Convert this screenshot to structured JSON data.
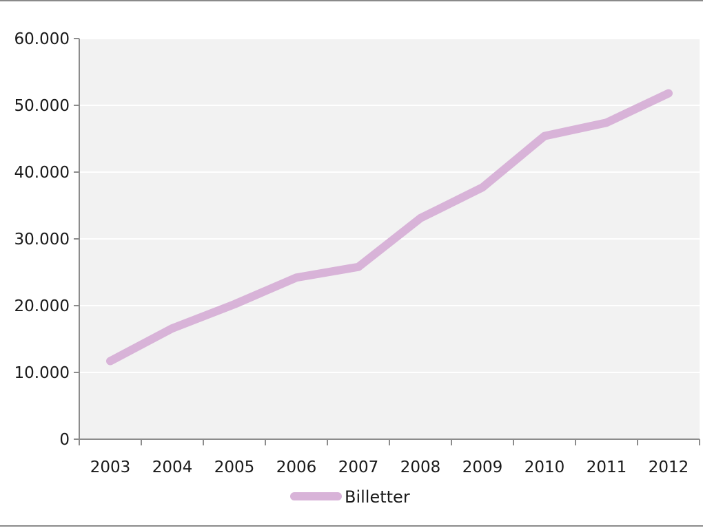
{
  "chart_data": {
    "type": "line",
    "title": "",
    "xlabel": "",
    "ylabel": "",
    "categories": [
      "2003",
      "2004",
      "2005",
      "2006",
      "2007",
      "2008",
      "2009",
      "2010",
      "2011",
      "2012"
    ],
    "series": [
      {
        "name": "Billetter",
        "color": "#d8b3d8",
        "values": [
          11700,
          16600,
          20200,
          24200,
          25800,
          33100,
          37700,
          45400,
          47400,
          51800
        ]
      }
    ],
    "yticks": [
      0,
      10000,
      20000,
      30000,
      40000,
      50000,
      60000
    ],
    "ytick_labels": [
      "0",
      "10.000",
      "20.000",
      "30.000",
      "40.000",
      "50.000",
      "60.000"
    ],
    "ylim": [
      0,
      60000
    ],
    "grid": true,
    "legend_position": "bottom",
    "plot_background": "#f2f2f2"
  }
}
